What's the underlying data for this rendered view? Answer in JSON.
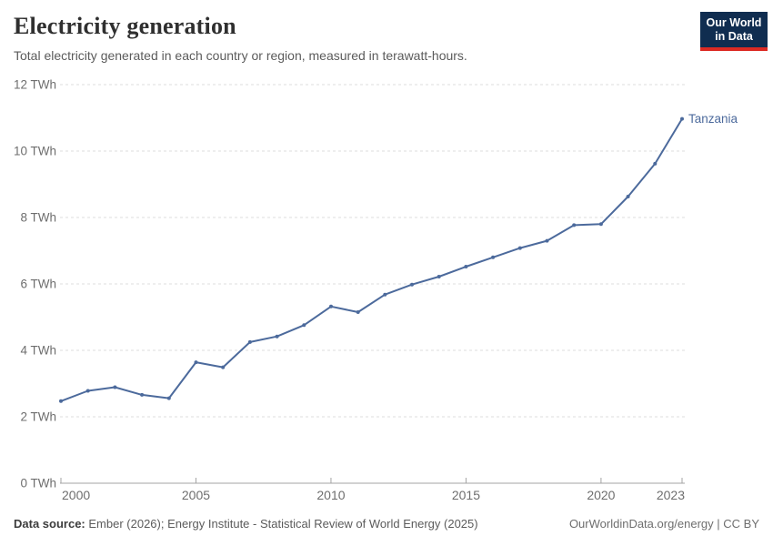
{
  "header": {
    "title": "Electricity generation",
    "subtitle": "Total electricity generated in each country or region, measured in terawatt-hours."
  },
  "logo": {
    "line1": "Our World",
    "line2": "in Data",
    "background_color": "#102d50",
    "accent_color": "#dc2a23"
  },
  "chart_data": {
    "type": "line",
    "title": "Electricity generation",
    "xlabel": "",
    "ylabel": "",
    "x": [
      2000,
      2001,
      2002,
      2003,
      2004,
      2005,
      2006,
      2007,
      2008,
      2009,
      2010,
      2011,
      2012,
      2013,
      2014,
      2015,
      2016,
      2017,
      2018,
      2019,
      2020,
      2021,
      2022,
      2023
    ],
    "series": [
      {
        "name": "Tanzania",
        "color": "#4c6a9c",
        "values": [
          2.47,
          2.78,
          2.89,
          2.66,
          2.56,
          3.64,
          3.49,
          4.25,
          4.42,
          4.76,
          5.32,
          5.15,
          5.68,
          5.98,
          6.22,
          6.52,
          6.8,
          7.08,
          7.3,
          7.77,
          7.8,
          8.63,
          9.62,
          10.97
        ]
      }
    ],
    "xlim": [
      2000,
      2023
    ],
    "ylim": [
      0,
      12
    ],
    "x_ticks": [
      2000,
      2005,
      2010,
      2015,
      2020,
      2023
    ],
    "y_ticks": [
      0,
      2,
      4,
      6,
      8,
      10,
      12
    ],
    "y_tick_unit": " TWh",
    "grid": "horizontal-dashed",
    "legend_position": "end-of-line-label",
    "colors": {
      "gridline": "#dcdcdc",
      "axis": "#a3a3a3",
      "tick_label": "#6e6e6e"
    }
  },
  "footer": {
    "source_label": "Data source:",
    "source_text": "Ember (2026); Energy Institute - Statistical Review of World Energy (2025)",
    "link_text": "OurWorldinData.org/energy | CC BY"
  }
}
